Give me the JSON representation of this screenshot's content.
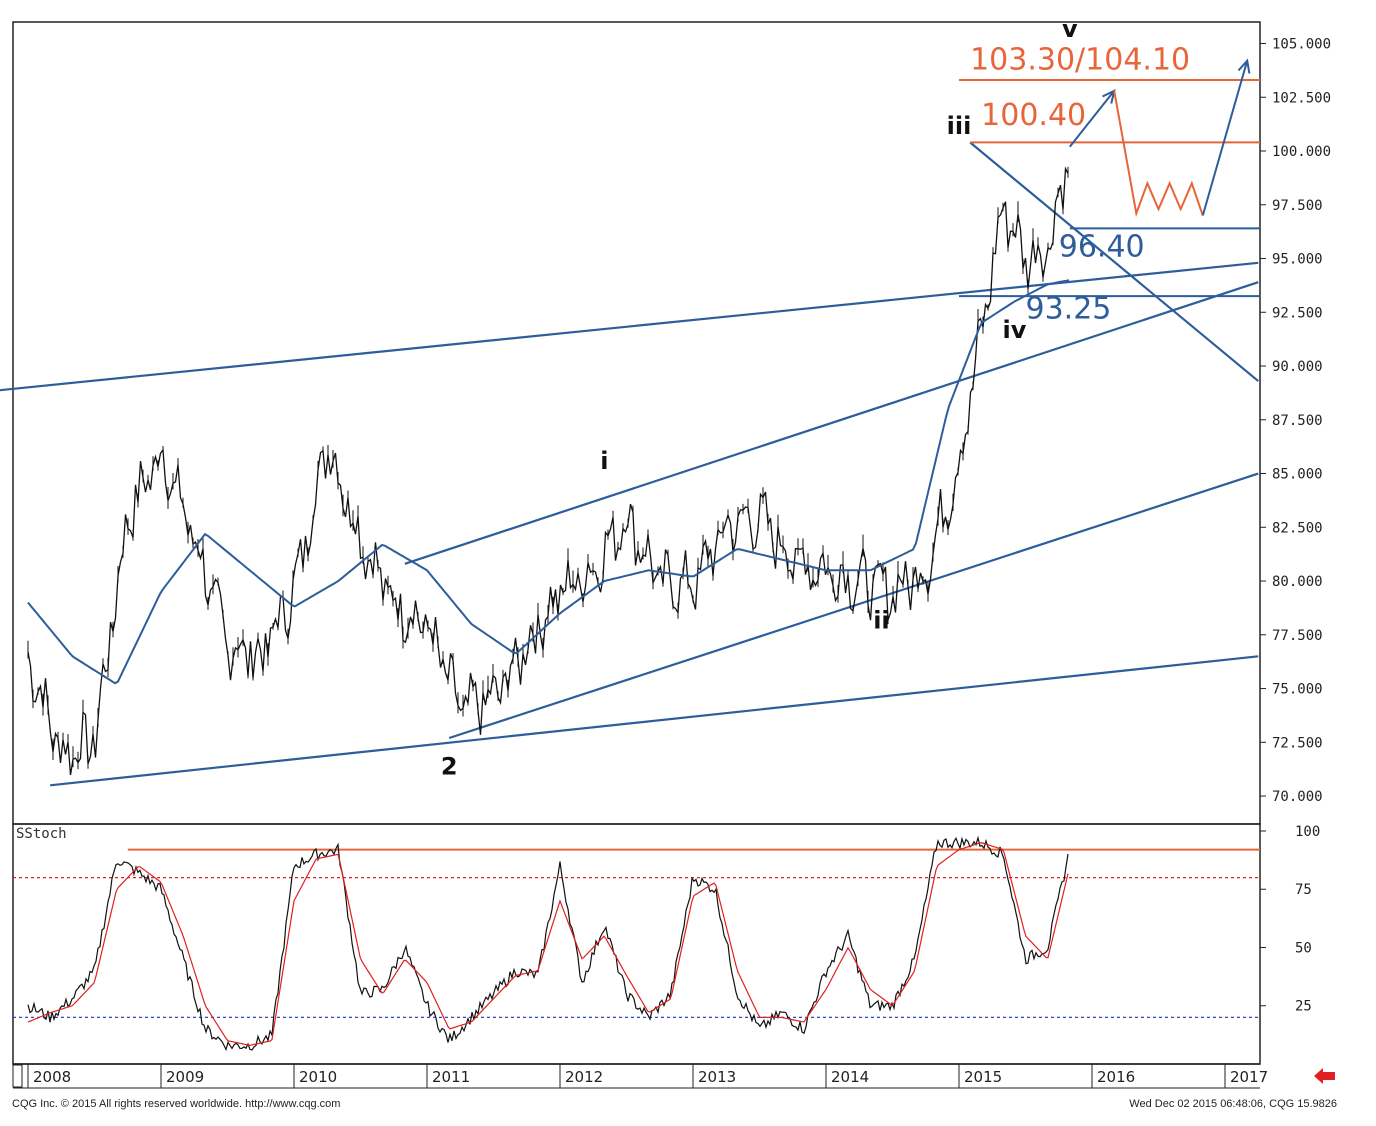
{
  "chart_data": [
    {
      "type": "line",
      "series": [
        {
          "x": [
            "2008-01",
            "2008-04",
            "2008-07",
            "2008-10",
            "2009-01",
            "2009-04",
            "2009-07",
            "2009-10",
            "2010-01",
            "2010-04",
            "2010-07",
            "2010-10",
            "2011-01",
            "2011-04",
            "2011-07",
            "2011-10",
            "2012-01",
            "2012-04",
            "2012-07",
            "2012-10",
            "2013-01",
            "2013-04",
            "2013-07",
            "2013-10",
            "2014-01",
            "2014-04",
            "2014-07",
            "2014-10",
            "2015-01",
            "2015-03",
            "2015-05",
            "2015-07",
            "2015-09",
            "2015-11"
          ],
          "values": [
            76.5,
            72.0,
            72.5,
            83.0,
            86.0,
            82.0,
            77.0,
            76.5,
            79.5,
            86.5,
            82.0,
            79.0,
            78.0,
            74.0,
            74.5,
            77.0,
            79.5,
            80.5,
            83.0,
            80.0,
            79.8,
            82.5,
            83.0,
            81.0,
            80.5,
            80.0,
            79.5,
            80.5,
            85.5,
            91.5,
            97.5,
            95.0,
            95.5,
            100.0
          ]
        },
        {
          "x": [
            "2008-01",
            "2008-05",
            "2008-09",
            "2009-01",
            "2009-05",
            "2009-09",
            "2010-01",
            "2010-05",
            "2010-09",
            "2011-01",
            "2011-05",
            "2011-09",
            "2012-01",
            "2012-05",
            "2012-09",
            "2013-01",
            "2013-05",
            "2013-09",
            "2014-01",
            "2014-05",
            "2014-09",
            "2014-12",
            "2015-03",
            "2015-06",
            "2015-09",
            "2015-11"
          ],
          "values": [
            79.0,
            76.5,
            75.2,
            79.5,
            82.2,
            80.5,
            78.8,
            80.0,
            81.7,
            80.5,
            78.0,
            76.6,
            78.5,
            80.0,
            80.5,
            80.2,
            81.5,
            81.0,
            80.5,
            80.5,
            81.5,
            88.0,
            92.0,
            93.0,
            93.8,
            94.0
          ]
        }
      ],
      "x_ticks": [
        "2008",
        "2009",
        "2010",
        "2011",
        "2012",
        "2013",
        "2014",
        "2015",
        "2016",
        "2017"
      ],
      "y_ticks": [
        "105.000",
        "102.500",
        "100.000",
        "97.500",
        "95.000",
        "92.500",
        "90.000",
        "87.500",
        "85.000",
        "82.500",
        "80.000",
        "77.500",
        "75.000",
        "72.500",
        "70.000"
      ],
      "ylim": [
        68.7,
        106.0
      ],
      "grid": false,
      "annotations": [
        {
          "text": "v",
          "x": "2015-11",
          "y": 105.3,
          "kind": "wave"
        },
        {
          "text": "iii",
          "x": "2015-01",
          "y": 100.8,
          "kind": "wave"
        },
        {
          "text": "iv",
          "x": "2015-06",
          "y": 91.3,
          "kind": "wave"
        },
        {
          "text": "i",
          "x": "2012-05",
          "y": 85.2,
          "kind": "wave"
        },
        {
          "text": "ii",
          "x": "2014-06",
          "y": 77.8,
          "kind": "wave"
        },
        {
          "text": "2",
          "x": "2011-03",
          "y": 71.0,
          "kind": "wave"
        },
        {
          "text": "103.30/104.10",
          "x": "2015-02",
          "y": 103.8,
          "kind": "level-red"
        },
        {
          "text": "100.40",
          "x": "2015-03",
          "y": 101.2,
          "kind": "level-red"
        },
        {
          "text": "96.40",
          "x": "2015-10",
          "y": 95.1,
          "kind": "level-blue"
        },
        {
          "text": "93.25",
          "x": "2015-07",
          "y": 92.2,
          "kind": "level-blue"
        }
      ],
      "levels": [
        {
          "label": "103.30/104.10",
          "value": 103.3,
          "from": "2015-01",
          "color": "#e8653a"
        },
        {
          "label": "100.40",
          "value": 100.4,
          "from": "2015-02",
          "color": "#e8653a"
        },
        {
          "label": "96.40",
          "value": 96.4,
          "from": "2015-11",
          "color": "#2d5d9a"
        },
        {
          "label": "93.25",
          "value": 93.25,
          "from": "2015-01",
          "color": "#2d5d9a"
        }
      ],
      "trendlines": [
        {
          "from": [
            "2007-09",
            88.8
          ],
          "to": [
            "2017-04",
            94.8
          ],
          "color": "#2d5d9a"
        },
        {
          "from": [
            "2008-03",
            70.5
          ],
          "to": [
            "2017-04",
            76.5
          ],
          "color": "#2d5d9a"
        },
        {
          "from": [
            "2011-03",
            72.7
          ],
          "to": [
            "2017-04",
            85.0
          ],
          "color": "#2d5d9a"
        },
        {
          "from": [
            "2010-11",
            80.8
          ],
          "to": [
            "2017-04",
            93.9
          ],
          "color": "#2d5d9a"
        },
        {
          "from": [
            "2015-02",
            100.4
          ],
          "to": [
            "2017-04",
            89.3
          ],
          "color": "#2d5d9a"
        }
      ],
      "forecast_paths": [
        {
          "color": "#2d5d9a",
          "points": [
            [
              "2015-11",
              100.2
            ],
            [
              "2016-03",
              102.8
            ]
          ]
        },
        {
          "color": "#e8653a",
          "points": [
            [
              "2016-03",
              102.8
            ],
            [
              "2016-05",
              97.1
            ],
            [
              "2016-06",
              98.5
            ],
            [
              "2016-07",
              97.3
            ],
            [
              "2016-08",
              98.5
            ],
            [
              "2016-09",
              97.3
            ],
            [
              "2016-10",
              98.5
            ],
            [
              "2016-11",
              97.0
            ]
          ]
        },
        {
          "color": "#2d5d9a",
          "points": [
            [
              "2016-11",
              97.0
            ],
            [
              "2017-03",
              104.2
            ]
          ]
        }
      ],
      "colors": {
        "price": "#111111",
        "average": "#2d5d9a",
        "level_red": "#e8653a",
        "level_blue": "#2d5d9a"
      }
    },
    {
      "type": "line",
      "title": "SStoch",
      "series": [
        {
          "x": [
            "2008-01",
            "2008-03",
            "2008-05",
            "2008-07",
            "2008-09",
            "2008-11",
            "2009-01",
            "2009-03",
            "2009-05",
            "2009-07",
            "2009-09",
            "2009-11",
            "2010-01",
            "2010-03",
            "2010-05",
            "2010-07",
            "2010-09",
            "2010-11",
            "2011-01",
            "2011-03",
            "2011-05",
            "2011-07",
            "2011-09",
            "2011-11",
            "2012-01",
            "2012-03",
            "2012-05",
            "2012-07",
            "2012-09",
            "2012-11",
            "2013-01",
            "2013-03",
            "2013-05",
            "2013-07",
            "2013-09",
            "2013-11",
            "2014-01",
            "2014-03",
            "2014-05",
            "2014-07",
            "2014-09",
            "2014-11",
            "2015-01",
            "2015-03",
            "2015-05",
            "2015-07",
            "2015-09",
            "2015-11"
          ],
          "values": [
            25,
            20,
            28,
            40,
            88,
            82,
            75,
            45,
            15,
            8,
            8,
            12,
            85,
            90,
            92,
            30,
            32,
            50,
            25,
            10,
            20,
            30,
            40,
            38,
            85,
            35,
            60,
            30,
            20,
            30,
            80,
            75,
            30,
            15,
            22,
            15,
            40,
            55,
            25,
            25,
            45,
            95,
            95,
            95,
            90,
            45,
            50,
            92
          ]
        },
        {
          "x": [
            "2008-01",
            "2008-03",
            "2008-05",
            "2008-07",
            "2008-09",
            "2008-11",
            "2009-01",
            "2009-03",
            "2009-05",
            "2009-07",
            "2009-09",
            "2009-11",
            "2010-01",
            "2010-03",
            "2010-05",
            "2010-07",
            "2010-09",
            "2010-11",
            "2011-01",
            "2011-03",
            "2011-05",
            "2011-07",
            "2011-09",
            "2011-11",
            "2012-01",
            "2012-03",
            "2012-05",
            "2012-07",
            "2012-09",
            "2012-11",
            "2013-01",
            "2013-03",
            "2013-05",
            "2013-07",
            "2013-09",
            "2013-11",
            "2014-01",
            "2014-03",
            "2014-05",
            "2014-07",
            "2014-09",
            "2014-11",
            "2015-01",
            "2015-03",
            "2015-05",
            "2015-07",
            "2015-09",
            "2015-11"
          ],
          "values": [
            18,
            22,
            25,
            35,
            75,
            85,
            78,
            55,
            25,
            10,
            8,
            10,
            70,
            88,
            90,
            45,
            30,
            45,
            35,
            15,
            18,
            28,
            38,
            40,
            70,
            45,
            55,
            38,
            22,
            28,
            72,
            78,
            40,
            20,
            20,
            18,
            32,
            50,
            32,
            25,
            40,
            85,
            92,
            95,
            92,
            55,
            45,
            85
          ]
        }
      ],
      "y_ticks": [
        "100",
        "75",
        "50",
        "25"
      ],
      "ylim": [
        0,
        103
      ],
      "reference_lines": [
        {
          "value": 92,
          "style": "solid",
          "color": "#e8653a"
        },
        {
          "value": 80,
          "style": "dashed",
          "color": "#e02020"
        },
        {
          "value": 20,
          "style": "dashed",
          "color": "#3344cc"
        }
      ],
      "colors": {
        "k_line": "#111111",
        "d_line": "#e02020"
      }
    }
  ],
  "footer": {
    "left": "CQG Inc. © 2015 All rights reserved worldwide. http://www.cqg.com",
    "right": "Wed Dec 02 2015 06:48:06, CQG 15.9826"
  },
  "icons": {
    "scroll_arrow": "left-arrow-icon",
    "scroll_color": "#e02020"
  }
}
